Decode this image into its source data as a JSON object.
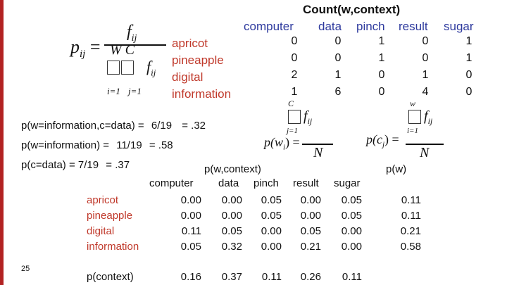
{
  "colors": {
    "accent": "#b22222",
    "word_red": "#c0392b",
    "header_blue": "#2e3a9e"
  },
  "count_table": {
    "title": "Count(w,context)",
    "columns": [
      "computer",
      "data",
      "pinch",
      "result",
      "sugar"
    ],
    "rows": [
      {
        "word": "apricot",
        "values": [
          "0",
          "0",
          "1",
          "0",
          "1"
        ]
      },
      {
        "word": "pineapple",
        "values": [
          "0",
          "0",
          "1",
          "0",
          "1"
        ]
      },
      {
        "word": "digital",
        "values": [
          "2",
          "1",
          "0",
          "1",
          "0"
        ]
      },
      {
        "word": "information",
        "values": [
          "1",
          "6",
          "0",
          "4",
          "0"
        ]
      }
    ]
  },
  "formula_pij": {
    "lhs": "p",
    "lhs_sub": "ij",
    "numerator": "f",
    "numerator_sub": "ij",
    "denominator": "W  C",
    "sum_lower_i": "i=1",
    "sum_lower_j": "j=1",
    "sum_term": "f",
    "sum_term_sub": "ij"
  },
  "formula_pw": {
    "lhs": "p(w",
    "lhs_sub": "i",
    "lhs_end": ") =",
    "upper": "C",
    "lower": "j=1",
    "term": "f",
    "term_sub": "ij",
    "denominator": "N"
  },
  "formula_pc": {
    "lhs": "p(c",
    "lhs_sub": "j",
    "lhs_end": ") =",
    "upper": "w",
    "lower": "i=1",
    "term": "f",
    "term_sub": "ij",
    "denominator": "N"
  },
  "calculations": {
    "line1_label": "p(w=information,c=data) =",
    "line1_value": "6/19",
    "line1_result": "= .32",
    "line2_label": "p(w=information) =",
    "line2_value": "11/19",
    "line2_result": "= .58",
    "line3_label": "p(c=data) =",
    "line3_value": "7/19",
    "line3_result": "= .37"
  },
  "prob_table": {
    "title": "p(w,context)",
    "pw_title": "p(w)",
    "columns": [
      "computer",
      "data",
      "pinch",
      "result",
      "sugar"
    ],
    "rows": [
      {
        "word": "apricot",
        "values": [
          "0.00",
          "0.00",
          "0.05",
          "0.00",
          "0.05"
        ],
        "pw": "0.11"
      },
      {
        "word": "pineapple",
        "values": [
          "0.00",
          "0.00",
          "0.05",
          "0.00",
          "0.05"
        ],
        "pw": "0.11"
      },
      {
        "word": "digital",
        "values": [
          "0.11",
          "0.05",
          "0.00",
          "0.05",
          "0.00"
        ],
        "pw": "0.21"
      },
      {
        "word": "information",
        "values": [
          "0.05",
          "0.32",
          "0.00",
          "0.21",
          "0.00"
        ],
        "pw": "0.58"
      }
    ],
    "context_label": "p(context)",
    "context_values": [
      "0.16",
      "0.37",
      "0.11",
      "0.26",
      "0.11"
    ]
  },
  "page_number": "25"
}
